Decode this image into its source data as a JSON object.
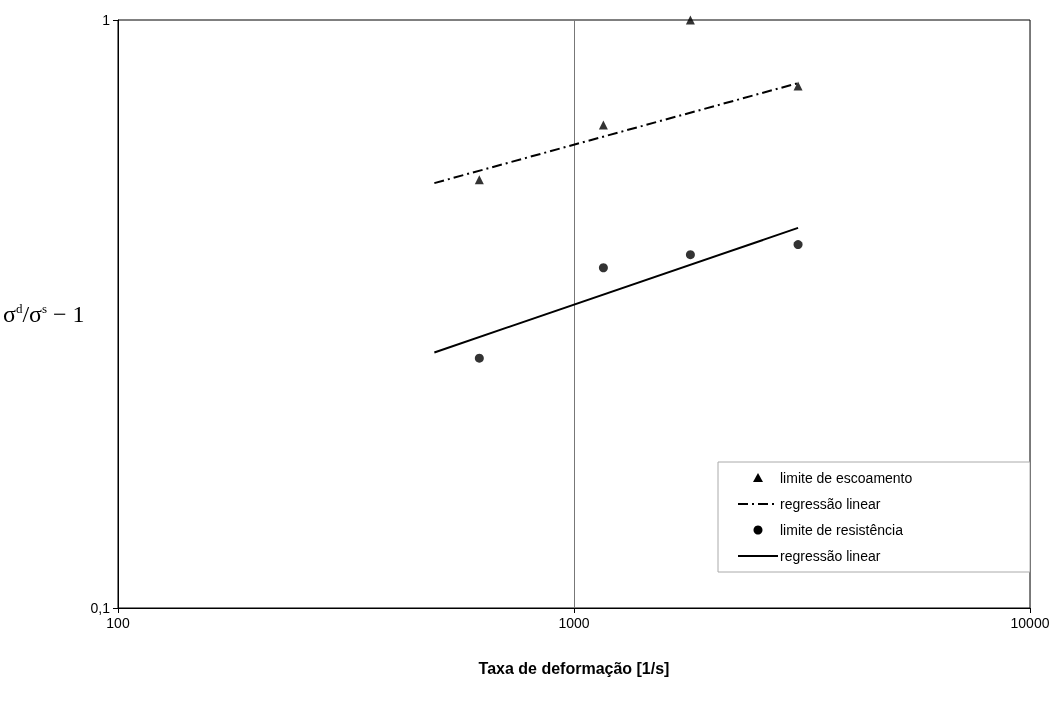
{
  "chart_data": {
    "type": "scatter",
    "xlabel": "Taxa de deformação [1/s]",
    "ylabel": "σ$^{d}$/σ$^{s}$ − 1",
    "log": "xy",
    "xlim": [
      100,
      10000
    ],
    "xticks": [
      100,
      1000,
      10000
    ],
    "ylim": [
      0.1,
      1
    ],
    "yticks": [
      {
        "value": 0.1,
        "label": "0,1"
      },
      1
    ],
    "grid": "x",
    "legend": "bottom right",
    "series": [
      {
        "name": "limite de escoamento",
        "marker": "triangle",
        "color": "#000000",
        "x": [
          620,
          1160,
          1800,
          3100
        ],
        "values": [
          0.535,
          0.663,
          1.0,
          0.772
        ]
      },
      {
        "name": "regressão linear",
        "type": "line",
        "marker": "none",
        "line_style": "dashed",
        "color": "#000000",
        "x": [
          494,
          3100
        ],
        "values": [
          0.528,
          0.781
        ]
      },
      {
        "name": "limite de resistência",
        "marker": "circle",
        "color": "#000000",
        "x": [
          620,
          1160,
          1800,
          3100
        ],
        "values": [
          0.266,
          0.379,
          0.399,
          0.415
        ]
      },
      {
        "name": "regressão linear",
        "type": "line",
        "marker": "none",
        "line_style": "solid",
        "color": "#000000",
        "x": [
          494,
          3100
        ],
        "values": [
          0.272,
          0.443
        ]
      }
    ]
  }
}
